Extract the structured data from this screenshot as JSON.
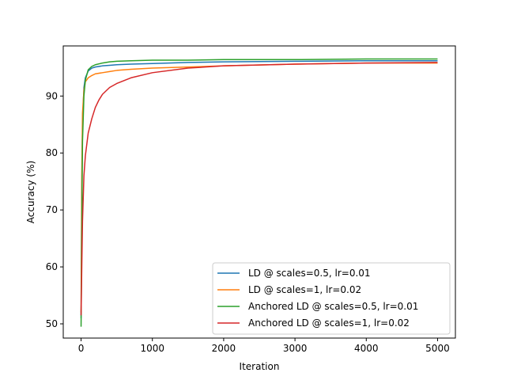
{
  "chart_data": {
    "type": "line",
    "xlabel": "Iteration",
    "ylabel": "Accuracy (%)",
    "xlim": [
      -250,
      5250
    ],
    "ylim": [
      47.5,
      98.8
    ],
    "xticks": [
      0,
      1000,
      2000,
      3000,
      4000,
      5000
    ],
    "yticks": [
      50,
      60,
      70,
      80,
      90
    ],
    "grid": false,
    "legend_position": "lower-right",
    "series": [
      {
        "name": "LD @ scales=0.5, lr=0.01",
        "color": "#1f77b4",
        "x": [
          0,
          10,
          20,
          40,
          60,
          100,
          150,
          200,
          300,
          400,
          500,
          700,
          1000,
          1500,
          2000,
          3000,
          4000,
          5000
        ],
        "y": [
          51.0,
          72.0,
          85.0,
          91.5,
          93.2,
          94.4,
          94.9,
          95.1,
          95.3,
          95.4,
          95.5,
          95.6,
          95.7,
          95.9,
          96.0,
          96.1,
          96.2,
          96.2
        ]
      },
      {
        "name": "LD @ scales=1, lr=0.02",
        "color": "#ff7f0e",
        "x": [
          0,
          10,
          20,
          40,
          60,
          100,
          150,
          200,
          300,
          400,
          500,
          700,
          1000,
          1500,
          2000,
          3000,
          4000,
          5000
        ],
        "y": [
          52.0,
          76.0,
          87.0,
          91.0,
          92.5,
          93.2,
          93.6,
          93.9,
          94.1,
          94.3,
          94.5,
          94.7,
          94.9,
          95.1,
          95.3,
          95.6,
          95.8,
          95.8
        ]
      },
      {
        "name": "Anchored LD @ scales=0.5, lr=0.01",
        "color": "#2ca02c",
        "x": [
          0,
          10,
          20,
          40,
          60,
          100,
          150,
          200,
          300,
          400,
          500,
          700,
          1000,
          1500,
          2000,
          3000,
          4000,
          5000
        ],
        "y": [
          49.5,
          68.0,
          82.0,
          90.0,
          92.8,
          94.6,
          95.2,
          95.5,
          95.8,
          96.0,
          96.1,
          96.2,
          96.3,
          96.3,
          96.4,
          96.4,
          96.5,
          96.5
        ]
      },
      {
        "name": "Anchored LD @ scales=1, lr=0.02",
        "color": "#d62728",
        "x": [
          0,
          10,
          20,
          40,
          60,
          100,
          150,
          200,
          250,
          300,
          400,
          500,
          700,
          1000,
          1500,
          2000,
          3000,
          4000,
          5000
        ],
        "y": [
          51.5,
          60.0,
          68.0,
          76.0,
          79.5,
          83.5,
          86.0,
          88.0,
          89.3,
          90.3,
          91.5,
          92.2,
          93.2,
          94.1,
          94.9,
          95.3,
          95.6,
          95.8,
          95.9
        ]
      }
    ]
  }
}
